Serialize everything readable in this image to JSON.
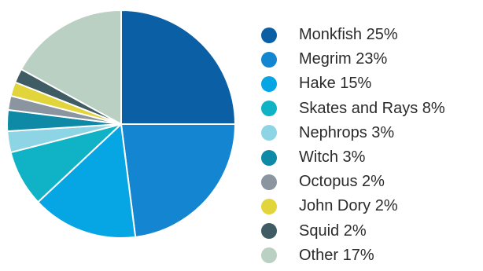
{
  "chart_data": {
    "type": "pie",
    "legend_position": "right",
    "slices": [
      {
        "label": "Monkfish 25%",
        "name": "Monkfish",
        "value": 25,
        "color": "#0b5fa5"
      },
      {
        "label": "Megrim 23%",
        "name": "Megrim",
        "value": 23,
        "color": "#1485d0"
      },
      {
        "label": "Hake 15%",
        "name": "Hake",
        "value": 15,
        "color": "#06a6e4"
      },
      {
        "label": "Skates and Rays 8%",
        "name": "Skates and Rays",
        "value": 8,
        "color": "#10b3c6"
      },
      {
        "label": "Nephrops 3%",
        "name": "Nephrops",
        "value": 3,
        "color": "#8dd4e4"
      },
      {
        "label": "Witch 3%",
        "name": "Witch",
        "value": 3,
        "color": "#0e8aa6"
      },
      {
        "label": "Octopus 2%",
        "name": "Octopus",
        "value": 2,
        "color": "#8a959f"
      },
      {
        "label": "John Dory 2%",
        "name": "John Dory",
        "value": 2,
        "color": "#e2d53c"
      },
      {
        "label": "Squid 2%",
        "name": "Squid",
        "value": 2,
        "color": "#3f5b63"
      },
      {
        "label": "Other 17%",
        "name": "Other",
        "value": 17,
        "color": "#b9d0c3"
      }
    ]
  }
}
